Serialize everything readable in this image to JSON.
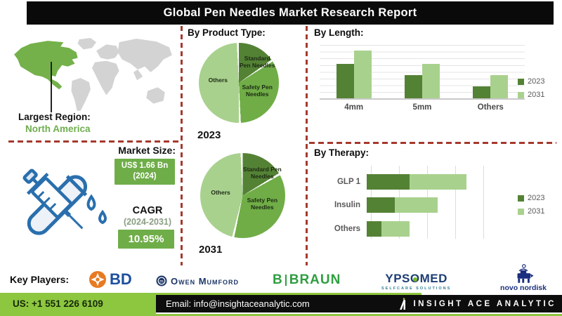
{
  "title": "Global Pen Needles Market Research Report",
  "region": {
    "label": "Largest Region:",
    "value": "North America"
  },
  "market_size": {
    "label": "Market Size:",
    "value": "US$ 1.66 Bn",
    "year": "(2024)"
  },
  "cagr": {
    "label": "CAGR",
    "period": "(2024-2031)",
    "value": "10.95%"
  },
  "chart_data": [
    {
      "type": "pie",
      "title": "By Product Type:",
      "year": "2023",
      "slices": [
        {
          "label": "Standard Pen Needles",
          "value": 16,
          "color": "#548235"
        },
        {
          "label": "Safety Pen Needles",
          "value": 34,
          "color": "#70ad47"
        },
        {
          "label": "Others",
          "value": 50,
          "color": "#a9d18e"
        }
      ]
    },
    {
      "type": "pie",
      "year": "2031",
      "slices": [
        {
          "label": "Standard Pen Needles",
          "value": 17,
          "color": "#548235"
        },
        {
          "label": "Safety Pen Needles",
          "value": 37,
          "color": "#70ad47"
        },
        {
          "label": "Others",
          "value": 46,
          "color": "#a9d18e"
        }
      ]
    },
    {
      "type": "bar",
      "title": "By Length:",
      "categories": [
        "4mm",
        "5mm",
        "Others"
      ],
      "series": [
        {
          "name": "2023",
          "color": "#548235",
          "values": [
            65,
            43,
            22
          ]
        },
        {
          "name": "2031",
          "color": "#a9d18e",
          "values": [
            90,
            65,
            43
          ]
        }
      ],
      "ylim": [
        0,
        100
      ],
      "grid": true,
      "legend_position": "right"
    },
    {
      "type": "stacked-bar-horizontal",
      "title": "By Therapy:",
      "categories": [
        "GLP 1",
        "Insulin",
        "Others"
      ],
      "series": [
        {
          "name": "2023",
          "color": "#548235",
          "values": [
            38,
            25,
            13
          ]
        },
        {
          "name": "2031",
          "color": "#a9d18e",
          "values": [
            50,
            38,
            25
          ]
        }
      ],
      "xlim": [
        0,
        100
      ],
      "grid": true,
      "legend_position": "right"
    }
  ],
  "key_players": {
    "label": "Key Players:",
    "bd": "BD",
    "owen_mumford": "Owen Mumford",
    "bbraun_b": "B",
    "bbraun_braun": "BRAUN",
    "ypsomed_p1": "YPS",
    "ypsomed_o": "O",
    "ypsomed_p2": "MED",
    "ypsomed_tagline": "SELFCARE SOLUTIONS",
    "novo_nordisk": "novo nordisk"
  },
  "footer": {
    "phone": "US: +1 551 226 6109",
    "email": "Email: info@insightaceanalytic.com",
    "brand": "INSIGHT ACE ANALYTIC"
  },
  "colors": {
    "dark_green": "#548235",
    "mid_green": "#70ad47",
    "light_green": "#a9d18e",
    "box_green": "#6fad49",
    "lime_green": "#8dc63f",
    "dashed_line_red": "#a5392d"
  }
}
